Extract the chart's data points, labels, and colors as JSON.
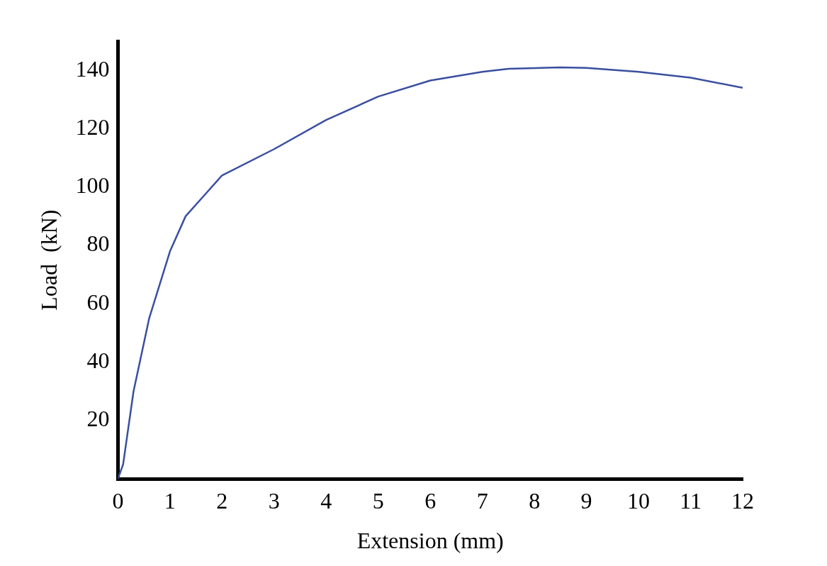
{
  "chart_data": {
    "type": "line",
    "xlabel": "Extension (mm)",
    "ylabel": "Load  (kN)",
    "x": [
      0,
      0.1,
      0.3,
      0.6,
      1,
      1.3,
      1.7,
      2,
      3,
      4,
      5,
      6,
      7,
      7.5,
      8.5,
      9,
      10,
      11,
      12
    ],
    "series": [
      {
        "color": "#3a4fa0",
        "values": [
          0,
          5,
          30,
          55,
          78,
          90,
          98,
          104,
          113,
          123,
          131,
          136.5,
          139.5,
          140.5,
          141,
          140.8,
          139.5,
          137.5,
          134
        ]
      }
    ],
    "xlim": [
      0,
      12
    ],
    "ylim": [
      0,
      150
    ],
    "xticks": [
      0,
      1,
      2,
      3,
      4,
      5,
      6,
      7,
      8,
      9,
      10,
      11,
      12
    ],
    "yticks": [
      20,
      40,
      60,
      80,
      100,
      120,
      140
    ],
    "grid": false,
    "legend": false,
    "marker": "none",
    "line_style": "solid"
  }
}
